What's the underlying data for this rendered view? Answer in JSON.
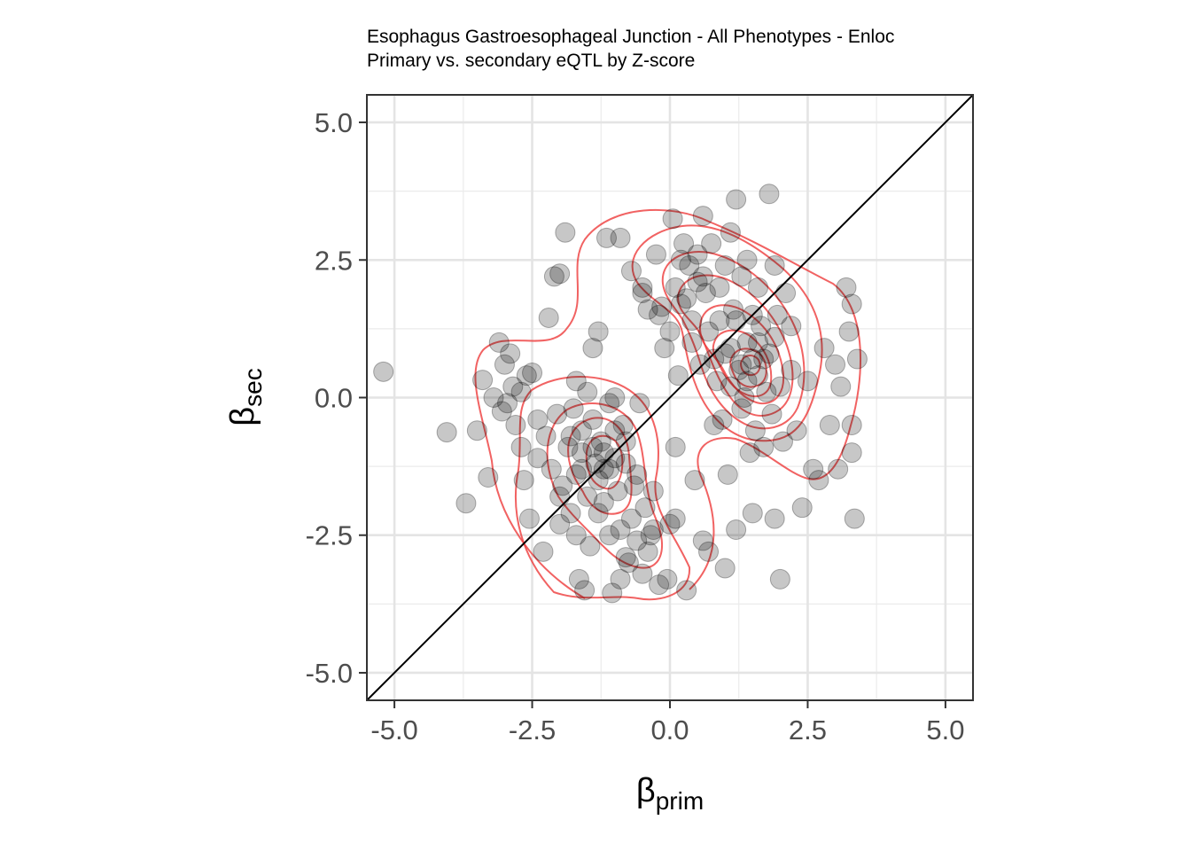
{
  "chart_data": {
    "type": "scatter",
    "title": "Esophagus Gastroesophageal Junction - All Phenotypes - Enloc",
    "subtitle": "Primary vs. secondary eQTL by Z-score",
    "xlabel": {
      "symbol": "β",
      "sub": "prim"
    },
    "ylabel": {
      "symbol": "β",
      "sub": "sec"
    },
    "xlim": [
      -5.5,
      5.5
    ],
    "ylim": [
      -5.5,
      5.5
    ],
    "x_ticks": [
      -5.0,
      -2.5,
      0.0,
      2.5,
      5.0
    ],
    "y_ticks": [
      -5.0,
      -2.5,
      0.0,
      2.5,
      5.0
    ],
    "x_tick_labels": [
      "-5.0",
      "-2.5",
      "0.0",
      "2.5",
      "5.0"
    ],
    "y_tick_labels": [
      "-5.0",
      "-2.5",
      "0.0",
      "2.5",
      "5.0"
    ],
    "grid": true,
    "reference_line": "y = x",
    "point_color": "#000000",
    "point_opacity": 0.22,
    "contour_color": "#ee3b3b",
    "points": [
      [
        -5.2,
        0.47
      ],
      [
        -4.05,
        -0.63
      ],
      [
        -3.7,
        -1.92
      ],
      [
        -3.5,
        -0.6
      ],
      [
        -3.4,
        0.32
      ],
      [
        -3.3,
        -1.45
      ],
      [
        -3.2,
        0.0
      ],
      [
        -3.1,
        1.0
      ],
      [
        -3.05,
        -0.25
      ],
      [
        -3.0,
        0.6
      ],
      [
        -2.95,
        -0.1
      ],
      [
        -2.9,
        0.8
      ],
      [
        -2.85,
        0.2
      ],
      [
        -2.8,
        -0.5
      ],
      [
        -2.7,
        -0.9
      ],
      [
        -2.65,
        -1.5
      ],
      [
        -2.6,
        0.4
      ],
      [
        -2.55,
        -2.2
      ],
      [
        -2.5,
        0.45
      ],
      [
        -2.4,
        -1.1
      ],
      [
        -2.3,
        -2.8
      ],
      [
        -2.25,
        -0.7
      ],
      [
        -2.2,
        1.45
      ],
      [
        -2.15,
        -1.3
      ],
      [
        -2.1,
        2.2
      ],
      [
        -2.05,
        -0.3
      ],
      [
        -2.0,
        2.25
      ],
      [
        -2.0,
        -2.3
      ],
      [
        -1.95,
        -1.6
      ],
      [
        -1.9,
        3.0
      ],
      [
        -1.85,
        -0.9
      ],
      [
        -1.8,
        -2.1
      ],
      [
        -1.75,
        -0.2
      ],
      [
        -1.7,
        -1.4
      ],
      [
        -1.7,
        -2.5
      ],
      [
        -1.65,
        -3.3
      ],
      [
        -1.6,
        -0.6
      ],
      [
        -1.6,
        -1.0
      ],
      [
        -1.55,
        -3.5
      ],
      [
        -1.5,
        0.1
      ],
      [
        -1.5,
        -1.8
      ],
      [
        -1.45,
        -2.7
      ],
      [
        -1.4,
        0.9
      ],
      [
        -1.4,
        -0.4
      ],
      [
        -1.35,
        -1.2
      ],
      [
        -1.3,
        -1.5
      ],
      [
        -1.3,
        1.2
      ],
      [
        -1.25,
        -0.8
      ],
      [
        -1.2,
        -1.0
      ],
      [
        -1.2,
        -1.9
      ],
      [
        -1.15,
        2.9
      ],
      [
        -1.1,
        -1.3
      ],
      [
        -1.1,
        -0.1
      ],
      [
        -1.05,
        -3.55
      ],
      [
        -1.0,
        -1.1
      ],
      [
        -1.0,
        0.0
      ],
      [
        -0.95,
        -1.7
      ],
      [
        -0.9,
        -2.4
      ],
      [
        -0.9,
        2.9
      ],
      [
        -0.85,
        -0.5
      ],
      [
        -0.8,
        -1.2
      ],
      [
        -0.8,
        -2.9
      ],
      [
        -0.75,
        -3.0
      ],
      [
        -0.7,
        -2.2
      ],
      [
        -0.7,
        2.3
      ],
      [
        -0.65,
        -1.6
      ],
      [
        -0.6,
        -2.6
      ],
      [
        -0.55,
        -0.1
      ],
      [
        -0.5,
        -3.2
      ],
      [
        -0.5,
        2.0
      ],
      [
        -0.45,
        -2.0
      ],
      [
        -0.4,
        1.6
      ],
      [
        -0.35,
        -2.5
      ],
      [
        -0.3,
        -1.7
      ],
      [
        -0.3,
        -2.4
      ],
      [
        -0.25,
        2.6
      ],
      [
        -0.2,
        -3.4
      ],
      [
        -0.15,
        1.65
      ],
      [
        -0.1,
        0.9
      ],
      [
        -0.05,
        -3.3
      ],
      [
        0.0,
        -2.3
      ],
      [
        0.0,
        1.2
      ],
      [
        0.05,
        3.25
      ],
      [
        0.1,
        -2.2
      ],
      [
        0.1,
        -0.9
      ],
      [
        0.1,
        2.0
      ],
      [
        0.15,
        0.4
      ],
      [
        0.2,
        1.7
      ],
      [
        0.25,
        2.8
      ],
      [
        0.3,
        -3.5
      ],
      [
        0.35,
        2.4
      ],
      [
        0.4,
        1.0
      ],
      [
        0.45,
        -1.5
      ],
      [
        0.5,
        2.6
      ],
      [
        0.55,
        0.6
      ],
      [
        0.6,
        3.3
      ],
      [
        0.6,
        -2.6
      ],
      [
        0.65,
        1.9
      ],
      [
        0.7,
        -2.8
      ],
      [
        0.75,
        2.8
      ],
      [
        0.8,
        -0.5
      ],
      [
        0.85,
        0.3
      ],
      [
        0.9,
        1.4
      ],
      [
        0.9,
        2.0
      ],
      [
        0.95,
        -0.4
      ],
      [
        1.0,
        0.8
      ],
      [
        1.0,
        -3.1
      ],
      [
        1.05,
        -1.4
      ],
      [
        1.1,
        3.0
      ],
      [
        1.1,
        0.2
      ],
      [
        1.15,
        1.6
      ],
      [
        1.2,
        -2.4
      ],
      [
        1.2,
        3.6
      ],
      [
        1.25,
        0.5
      ],
      [
        1.3,
        2.2
      ],
      [
        1.3,
        -0.2
      ],
      [
        1.35,
        0.0
      ],
      [
        1.4,
        1.0
      ],
      [
        1.4,
        2.5
      ],
      [
        1.45,
        -1.0
      ],
      [
        1.5,
        0.7
      ],
      [
        1.5,
        -2.1
      ],
      [
        1.55,
        -0.6
      ],
      [
        1.6,
        2.0
      ],
      [
        1.6,
        0.4
      ],
      [
        1.65,
        1.3
      ],
      [
        1.7,
        -0.9
      ],
      [
        1.75,
        0.1
      ],
      [
        1.8,
        3.7
      ],
      [
        1.8,
        0.8
      ],
      [
        1.85,
        -0.3
      ],
      [
        1.9,
        2.4
      ],
      [
        1.9,
        -2.2
      ],
      [
        1.95,
        1.5
      ],
      [
        2.0,
        -3.3
      ],
      [
        2.0,
        0.2
      ],
      [
        2.05,
        -0.8
      ],
      [
        2.1,
        1.9
      ],
      [
        2.2,
        0.5
      ],
      [
        2.3,
        -0.6
      ],
      [
        2.4,
        -2.0
      ],
      [
        2.5,
        0.3
      ],
      [
        2.6,
        -1.3
      ],
      [
        2.7,
        -1.5
      ],
      [
        2.8,
        0.9
      ],
      [
        2.9,
        -0.5
      ],
      [
        3.0,
        0.6
      ],
      [
        3.05,
        -1.3
      ],
      [
        3.1,
        0.2
      ],
      [
        3.2,
        2.0
      ],
      [
        3.25,
        1.2
      ],
      [
        3.3,
        1.7
      ],
      [
        3.3,
        -0.5
      ],
      [
        3.3,
        -1.0
      ],
      [
        3.35,
        -2.2
      ],
      [
        3.4,
        0.7
      ],
      [
        -0.2,
        1.5
      ],
      [
        0.3,
        1.8
      ],
      [
        0.7,
        1.2
      ],
      [
        1.2,
        1.4
      ],
      [
        1.6,
        1.0
      ],
      [
        1.3,
        0.6
      ],
      [
        1.4,
        0.3
      ],
      [
        1.7,
        0.7
      ],
      [
        1.1,
        0.9
      ],
      [
        0.8,
        0.7
      ],
      [
        1.5,
        1.5
      ],
      [
        1.9,
        1.1
      ],
      [
        2.2,
        1.3
      ],
      [
        0.5,
        2.1
      ],
      [
        0.2,
        2.5
      ],
      [
        0.6,
        2.2
      ],
      [
        1.0,
        2.4
      ],
      [
        0.4,
        1.4
      ],
      [
        -0.5,
        1.9
      ],
      [
        -1.2,
        -1.3
      ],
      [
        -1.4,
        -0.9
      ],
      [
        -1.0,
        -0.6
      ],
      [
        -1.6,
        -1.3
      ],
      [
        -0.8,
        -0.8
      ],
      [
        -1.8,
        -0.7
      ],
      [
        -1.3,
        -2.1
      ],
      [
        -0.6,
        -1.4
      ],
      [
        -2.0,
        -1.8
      ],
      [
        -1.1,
        -2.5
      ],
      [
        -0.4,
        -2.8
      ],
      [
        -0.9,
        -3.3
      ],
      [
        -2.4,
        -0.4
      ],
      [
        -2.7,
        0.1
      ],
      [
        -1.7,
        0.3
      ]
    ]
  }
}
